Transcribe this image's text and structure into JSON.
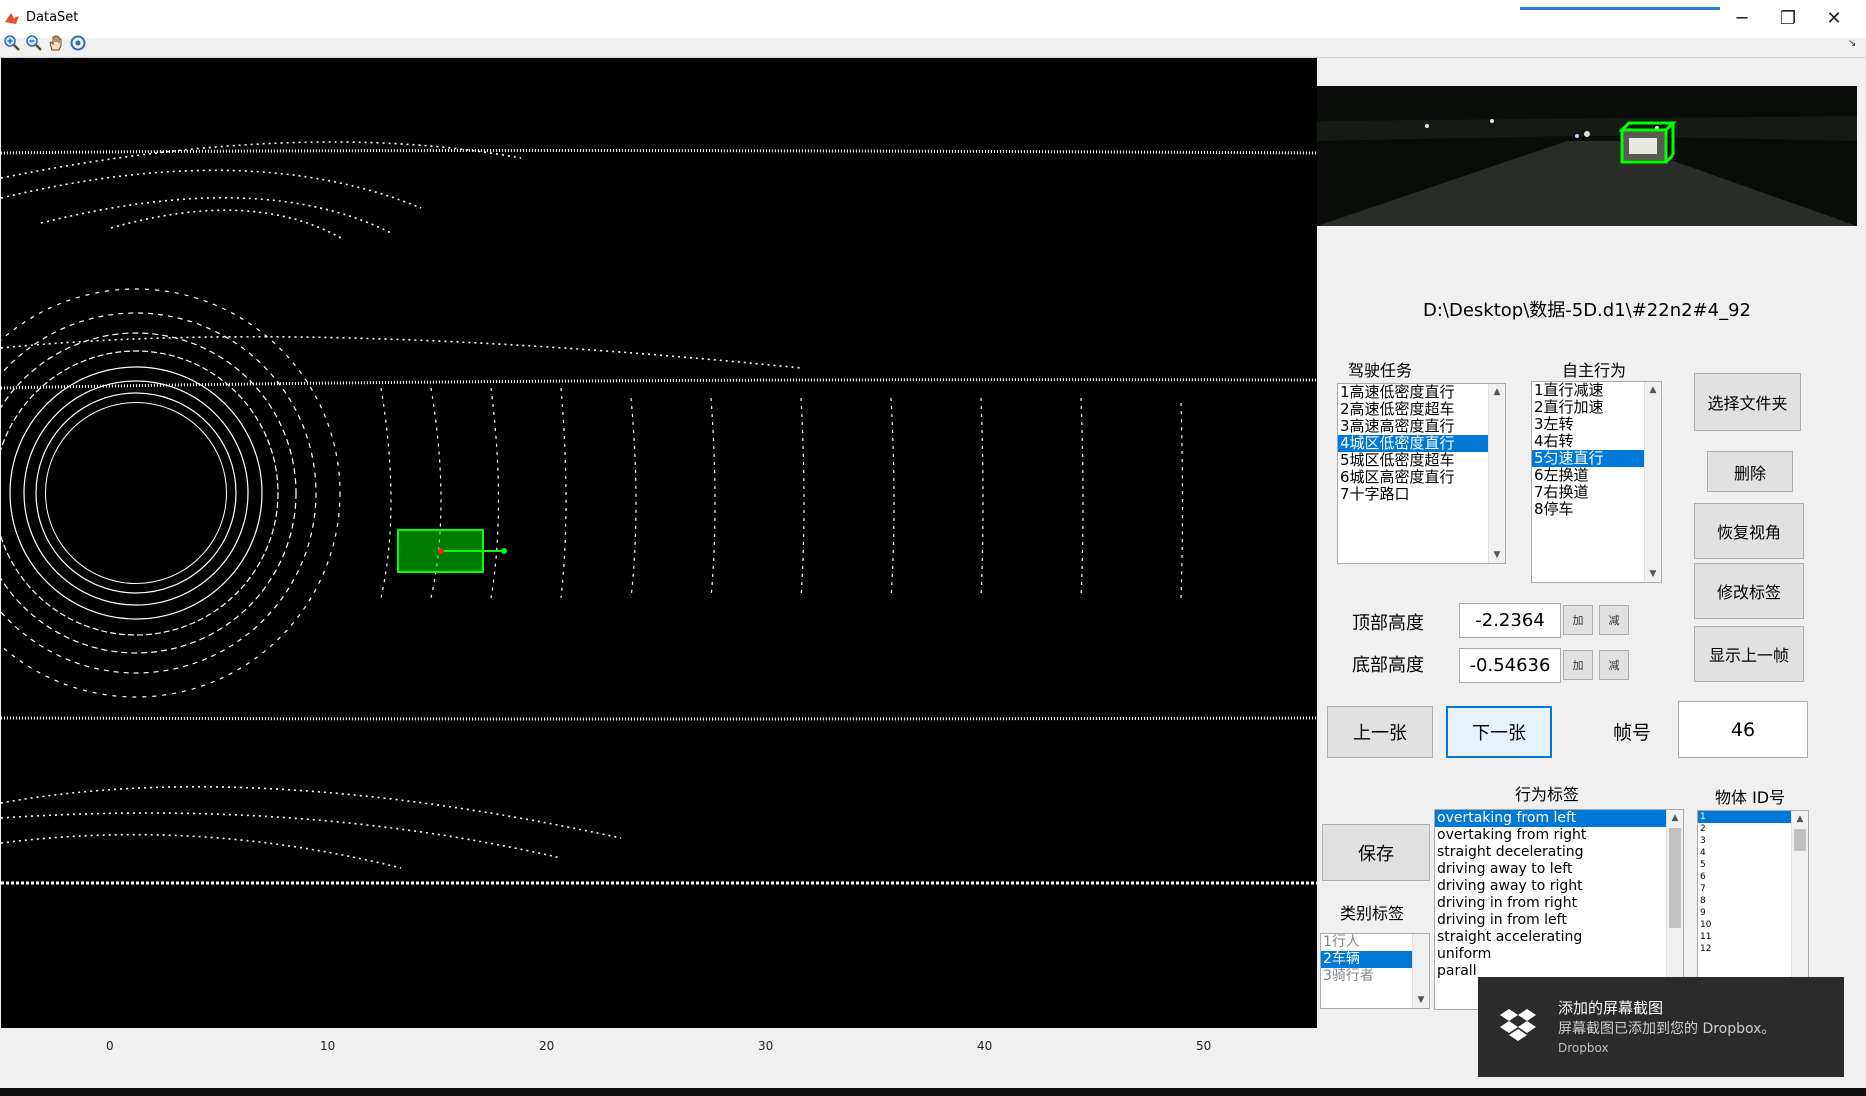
{
  "window": {
    "title": "DataSet",
    "minimize": "─",
    "restore": "❐",
    "close": "✕"
  },
  "toolbar": {
    "tools": [
      "zoom-in-icon",
      "zoom-out-icon",
      "pan-icon",
      "rotate-icon"
    ]
  },
  "plot": {
    "x_ticks": [
      "0",
      "10",
      "20",
      "30",
      "40",
      "50"
    ]
  },
  "path": "D:\\Desktop\\数据-5D.d1\\#22n2#4_92",
  "driving_task": {
    "label": "驾驶任务",
    "items": [
      "1高速低密度直行",
      "2高速低密度超车",
      "3高速高密度直行",
      "4城区低密度直行",
      "5城区低密度超车",
      "6城区高密度直行",
      "7十字路口"
    ],
    "selected": 3
  },
  "ego_behavior": {
    "label": "自主行为",
    "items": [
      "1直行减速",
      "2直行加速",
      "3左转",
      "4右转",
      "5匀速直行",
      "6左换道",
      "7右换道",
      "8停车"
    ],
    "selected": 4
  },
  "buttons": {
    "select_folder": "选择文件夹",
    "delete": "删除",
    "restore_view": "恢复视角",
    "modify_label": "修改标签",
    "show_prev_frame": "显示上一帧",
    "prev": "上一张",
    "next": "下一张",
    "save": "保存",
    "add": "加",
    "sub": "减"
  },
  "heights": {
    "top_label": "顶部高度",
    "top_value": "-2.2364",
    "bottom_label": "底部高度",
    "bottom_value": "-0.54636"
  },
  "frame": {
    "label": "帧号",
    "value": "46"
  },
  "behavior_label": {
    "label": "行为标签",
    "items": [
      "overtaking from left",
      "overtaking from right",
      "straight decelerating",
      "driving away to left",
      "driving away to right",
      "driving in from right",
      "driving in from left",
      "straight accelerating",
      "uniform",
      "parall"
    ],
    "selected": 0
  },
  "object_id": {
    "label": "物体 ID号",
    "items": [
      "1",
      "2",
      "3",
      "4",
      "5",
      "6",
      "7",
      "8",
      "9",
      "10",
      "11",
      "12"
    ],
    "selected": 0
  },
  "category": {
    "label": "类别标签",
    "items": [
      "1行人",
      "2车辆",
      "3骑行者"
    ],
    "selected": 1
  },
  "toast": {
    "title": "添加的屏幕截图",
    "body": "屏幕截图已添加到您的 Dropbox。",
    "source": "Dropbox"
  }
}
